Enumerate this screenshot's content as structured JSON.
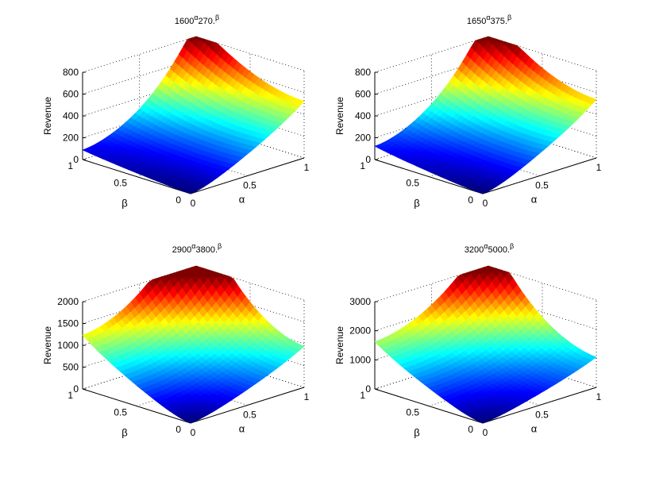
{
  "figure": {
    "background": "#ffffff"
  },
  "chart_data": [
    {
      "type": "surface",
      "title_base1": "1600",
      "title_exp1": "α",
      "title_base2": "270.",
      "title_exp2": "β",
      "zlabel": "Revenue",
      "xlabel": "α",
      "ylabel": "β",
      "zlim": [
        0,
        800
      ],
      "zticks": [
        "0",
        "200",
        "400",
        "600",
        "800"
      ],
      "xticks": [
        "0",
        "0.5",
        "1"
      ],
      "yticks": [
        "0",
        "0.5",
        "1"
      ],
      "a": 1600,
      "b": 270,
      "zmax": 800
    },
    {
      "type": "surface",
      "title_base1": "1650",
      "title_exp1": "α",
      "title_base2": "375.",
      "title_exp2": "β",
      "zlabel": "Revenue",
      "xlabel": "α",
      "ylabel": "β",
      "zlim": [
        0,
        800
      ],
      "zticks": [
        "0",
        "200",
        "400",
        "600",
        "800"
      ],
      "xticks": [
        "0",
        "0.5",
        "1"
      ],
      "yticks": [
        "0",
        "0.5",
        "1"
      ],
      "a": 1650,
      "b": 375,
      "zmax": 800
    },
    {
      "type": "surface",
      "title_base1": "2900",
      "title_exp1": "α",
      "title_base2": "3800.",
      "title_exp2": "β",
      "zlabel": "Revenue",
      "xlabel": "α",
      "ylabel": "β",
      "zlim": [
        0,
        2000
      ],
      "zticks": [
        "0",
        "500",
        "1000",
        "1500",
        "2000"
      ],
      "xticks": [
        "0",
        "0.5",
        "1"
      ],
      "yticks": [
        "0",
        "0.5",
        "1"
      ],
      "a": 2900,
      "b": 3800,
      "zmax": 2000
    },
    {
      "type": "surface",
      "title_base1": "3200",
      "title_exp1": "α",
      "title_base2": "5000.",
      "title_exp2": "β",
      "zlabel": "Revenue",
      "xlabel": "α",
      "ylabel": "β",
      "zlim": [
        0,
        3000
      ],
      "zticks": [
        "0",
        "1000",
        "2000",
        "3000"
      ],
      "xticks": [
        "0",
        "0.5",
        "1"
      ],
      "yticks": [
        "0",
        "0.5",
        "1"
      ],
      "a": 3200,
      "b": 5000,
      "zmax": 3000
    }
  ]
}
